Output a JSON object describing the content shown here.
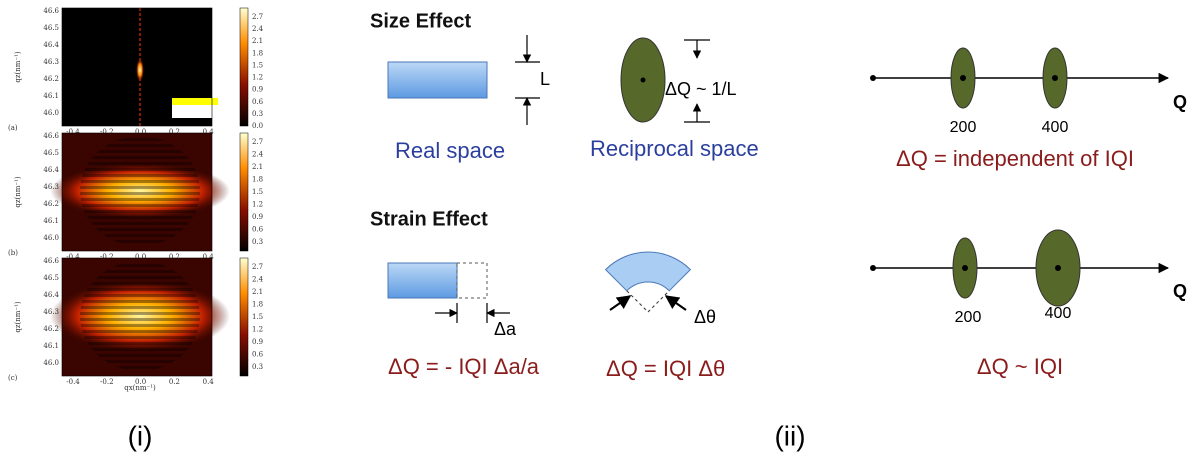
{
  "panels": [
    {
      "label": "(a)",
      "yticks": [
        "46.6",
        "46.5",
        "46.4",
        "46.3",
        "46.2",
        "46.1",
        "46.0"
      ],
      "xticks": [
        "-0.4",
        "-0.2",
        "0.0",
        "0.2",
        "0.4"
      ],
      "colorbar": [
        "2.7",
        "2.4",
        "2.1",
        "1.8",
        "1.5",
        "1.2",
        "0.9",
        "0.6",
        "0.3",
        "0.0"
      ]
    },
    {
      "label": "(b)",
      "yticks": [
        "46.6",
        "46.5",
        "46.4",
        "46.3",
        "46.2",
        "46.1",
        "46.0"
      ],
      "xticks": [
        "-0.4",
        "-0.2",
        "0.0",
        "0.2",
        "0.4"
      ],
      "colorbar": [
        "2.7",
        "2.4",
        "2.1",
        "1.8",
        "1.5",
        "1.2",
        "0.9",
        "0.6",
        "0.3"
      ]
    },
    {
      "label": "(c)",
      "yticks": [
        "46.6",
        "46.5",
        "46.4",
        "46.3",
        "46.2",
        "46.1",
        "46.0"
      ],
      "xticks": [
        "-0.4",
        "-0.2",
        "0.0",
        "0.2",
        "0.4"
      ],
      "colorbar": [
        "2.7",
        "2.4",
        "2.1",
        "1.8",
        "1.5",
        "1.2",
        "0.9",
        "0.6",
        "0.3"
      ]
    }
  ],
  "ylabel": "qz(nm⁻¹)",
  "xlabel": "qx(nm⁻¹)",
  "size_effect": {
    "title": "Size Effect",
    "length": "L",
    "width_relation": "ΔQ ~ 1/L",
    "real": "Real space",
    "reciprocal": "Reciprocal space",
    "peak1": "200",
    "peak2": "400",
    "axis": "Q",
    "result": "ΔQ = independent of IQI"
  },
  "strain_effect": {
    "title": "Strain Effect",
    "delta_a": "Δa",
    "delta_theta": "Δθ",
    "relation1": "ΔQ = - IQI Δa/a",
    "relation2": "ΔQ = IQI Δθ",
    "peak1": "200",
    "peak2": "400",
    "axis": "Q",
    "result": "ΔQ ~ IQI"
  },
  "captions": [
    "(i)",
    "(ii)"
  ]
}
